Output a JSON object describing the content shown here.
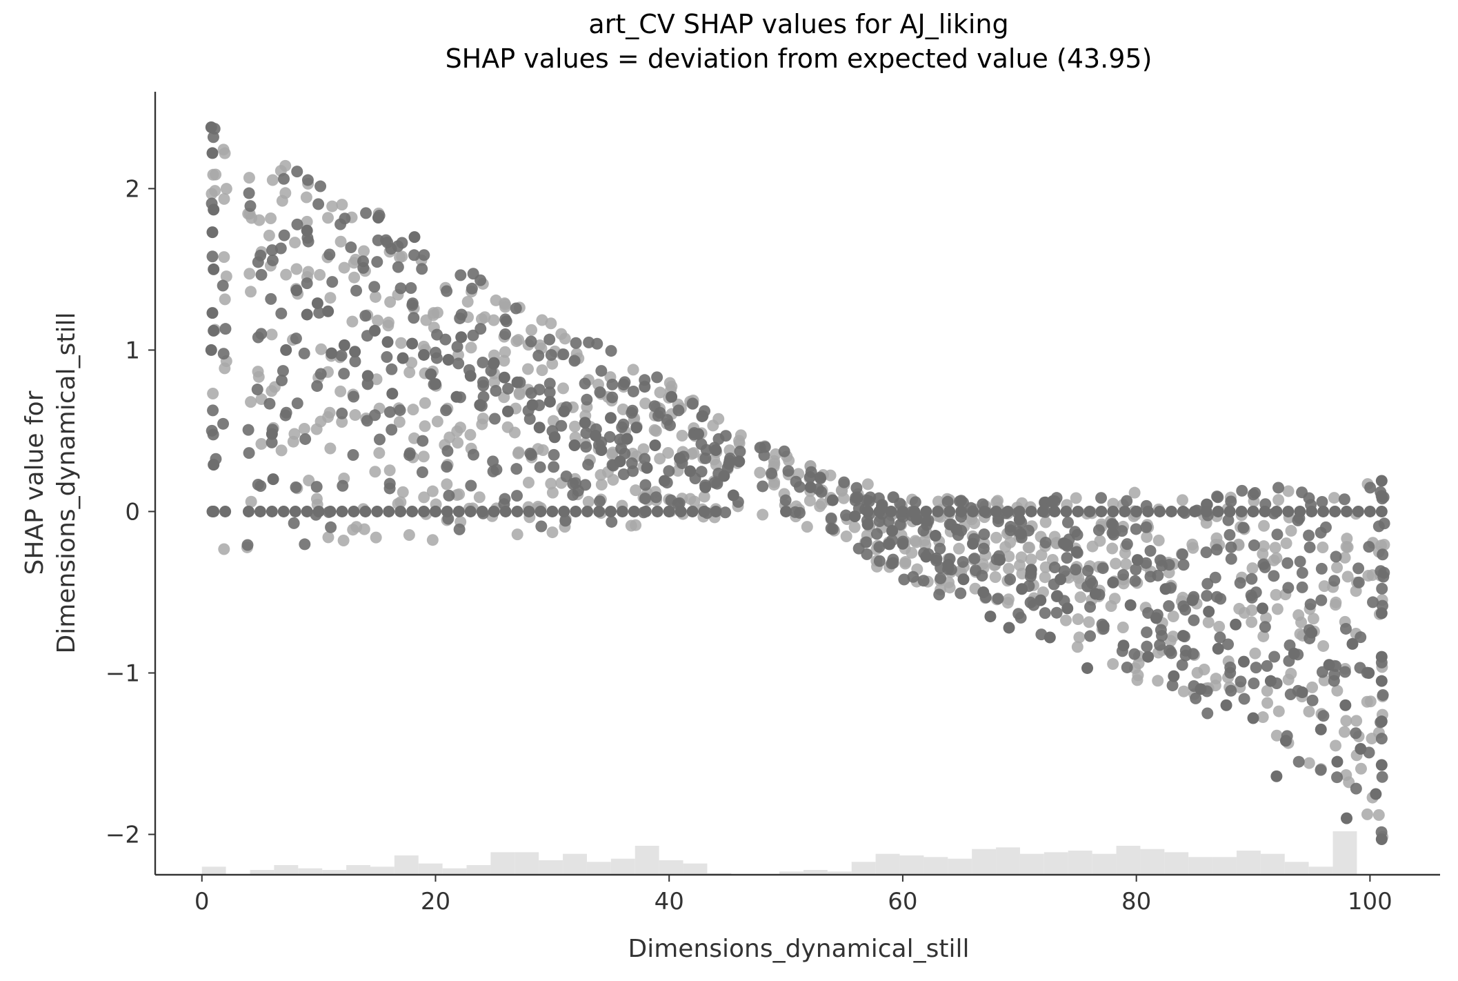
{
  "chart_data": {
    "type": "scatter",
    "title": "art_CV SHAP values for AJ_liking",
    "subtitle": "SHAP values = deviation from expected value (43.95)",
    "xlabel": "Dimensions_dynamical_still",
    "ylabel_lines": [
      "SHAP value for",
      "Dimensions_dynamical_still"
    ],
    "xlim": [
      -4,
      106
    ],
    "ylim": [
      -2.25,
      2.6
    ],
    "x_ticks": [
      0,
      20,
      40,
      60,
      80,
      100
    ],
    "y_ticks": [
      2,
      1,
      0,
      -1,
      -2
    ],
    "x_tick_labels": [
      "0",
      "20",
      "40",
      "60",
      "80",
      "100"
    ],
    "y_tick_labels": [
      "2",
      "1",
      "0",
      "−1",
      "−2"
    ],
    "grid": false,
    "colors": {
      "dark": "#6e6e6e",
      "light": "#a8a8a8",
      "histogram": "#e3e3e3",
      "axis": "#333333"
    },
    "envelope": {
      "x": [
        1,
        10,
        20,
        30,
        40,
        46,
        50,
        56,
        60,
        70,
        80,
        90,
        101
      ],
      "y_upper": [
        2.38,
        2.05,
        1.65,
        1.2,
        0.8,
        0.52,
        0.38,
        0.2,
        0.08,
        0.08,
        0.12,
        0.15,
        0.18
      ],
      "y_lower": [
        -0.27,
        -0.22,
        -0.18,
        -0.14,
        -0.08,
        -0.05,
        -0.02,
        -0.25,
        -0.45,
        -0.7,
        -1.05,
        -1.4,
        -2.03
      ]
    },
    "histogram": {
      "bin_start": 0,
      "bin_width": 2.06,
      "counts": [
        5,
        0,
        3,
        6,
        4,
        3,
        6,
        5,
        12,
        7,
        4,
        6,
        14,
        14,
        9,
        13,
        8,
        10,
        18,
        9,
        7,
        1,
        0,
        0,
        2,
        3,
        2,
        8,
        13,
        12,
        11,
        10,
        16,
        17,
        13,
        14,
        15,
        13,
        18,
        16,
        14,
        11,
        11,
        15,
        13,
        8,
        5,
        27
      ],
      "bin_count_max": 30
    },
    "series": [
      {
        "name": "",
        "points": [
          [
            0.8,
            2.38
          ],
          [
            0.9,
            2.22
          ],
          [
            1.0,
            1.87
          ],
          [
            0.9,
            1.73
          ],
          [
            1.0,
            1.5
          ],
          [
            0.9,
            1.23
          ],
          [
            1.0,
            1.12
          ],
          [
            0.8,
            1.0
          ],
          [
            1.0,
            0.29
          ],
          [
            0.9,
            0.0
          ],
          [
            6.0,
            0.48
          ],
          [
            6.1,
            0.2
          ],
          [
            7.2,
            1.0
          ],
          [
            8.1,
            1.37
          ],
          [
            9.0,
            1.74
          ],
          [
            9.0,
            1.22
          ],
          [
            9.9,
            1.29
          ],
          [
            10.8,
            1.24
          ],
          [
            11.1,
            0.98
          ],
          [
            12.2,
            1.03
          ],
          [
            13.1,
            0.99
          ],
          [
            14.2,
            0.84
          ],
          [
            14.8,
            1.12
          ],
          [
            15.1,
            1.82
          ],
          [
            15.9,
            1.05
          ],
          [
            16.3,
            0.73
          ],
          [
            17.2,
            0.95
          ],
          [
            18.2,
            1.7
          ],
          [
            18.0,
            1.04
          ],
          [
            19.0,
            0.97
          ],
          [
            19.6,
            0.85
          ],
          [
            20.0,
            0.79
          ],
          [
            21.1,
            0.94
          ],
          [
            21.8,
            0.71
          ],
          [
            22.2,
            1.08
          ],
          [
            23.0,
            0.84
          ],
          [
            23.8,
            0.66
          ],
          [
            25.0,
            0.92
          ],
          [
            25.9,
            0.83
          ],
          [
            26.2,
            0.62
          ],
          [
            27.0,
            0.8
          ],
          [
            28.3,
            0.66
          ],
          [
            28.9,
            0.52
          ],
          [
            29.8,
            0.68
          ],
          [
            30.2,
            0.46
          ],
          [
            31.0,
            0.62
          ],
          [
            31.9,
            0.41
          ],
          [
            32.8,
            0.55
          ],
          [
            33.7,
            0.47
          ],
          [
            34.2,
            0.38
          ],
          [
            35.0,
            0.58
          ],
          [
            35.8,
            0.31
          ],
          [
            36.4,
            0.45
          ],
          [
            37.2,
            0.52
          ],
          [
            38.1,
            0.27
          ],
          [
            38.8,
            0.41
          ],
          [
            39.6,
            0.19
          ],
          [
            40.2,
            0.71
          ],
          [
            40.9,
            0.33
          ],
          [
            41.8,
            0.25
          ],
          [
            42.5,
            0.48
          ],
          [
            43.1,
            0.15
          ],
          [
            44.0,
            0.38
          ],
          [
            44.7,
            0.22
          ],
          [
            45.5,
            0.1
          ],
          [
            46.0,
            0.31
          ],
          [
            50.0,
            0.0
          ],
          [
            52.1,
            0.15
          ],
          [
            54.0,
            0.07
          ],
          [
            55.9,
            -0.03
          ],
          [
            57.0,
            -0.08
          ],
          [
            58.2,
            0.02
          ],
          [
            59.1,
            -0.12
          ],
          [
            60.0,
            -0.2
          ],
          [
            61.2,
            -0.05
          ],
          [
            62.0,
            -0.28
          ],
          [
            62.8,
            -0.15
          ],
          [
            63.9,
            -0.33
          ],
          [
            64.6,
            -0.11
          ],
          [
            65.2,
            -0.42
          ],
          [
            66.0,
            -0.2
          ],
          [
            66.9,
            -0.5
          ],
          [
            67.5,
            -0.65
          ],
          [
            68.3,
            -0.3
          ],
          [
            69.1,
            -0.72
          ],
          [
            70.0,
            -0.05
          ],
          [
            70.2,
            -0.48
          ],
          [
            71.0,
            -0.36
          ],
          [
            71.8,
            -0.55
          ],
          [
            72.6,
            -0.78
          ],
          [
            73.5,
            -0.42
          ],
          [
            74.1,
            -0.6
          ],
          [
            74.9,
            -0.25
          ],
          [
            75.8,
            -0.97
          ],
          [
            76.5,
            -0.51
          ],
          [
            77.2,
            -0.71
          ],
          [
            78.0,
            -0.44
          ],
          [
            78.9,
            -0.83
          ],
          [
            79.5,
            -0.58
          ],
          [
            80.1,
            -0.3
          ],
          [
            81.0,
            -0.9
          ],
          [
            81.7,
            -0.66
          ],
          [
            82.5,
            -0.48
          ],
          [
            83.2,
            -1.02
          ],
          [
            84.0,
            -0.77
          ],
          [
            84.8,
            -0.55
          ],
          [
            85.5,
            -1.1
          ],
          [
            86.2,
            -0.62
          ],
          [
            87.0,
            -0.85
          ],
          [
            87.7,
            -1.2
          ],
          [
            88.5,
            -0.7
          ],
          [
            89.2,
            -0.93
          ],
          [
            90.0,
            -1.28
          ],
          [
            90.8,
            -0.6
          ],
          [
            91.5,
            -1.05
          ],
          [
            92.0,
            -1.64
          ],
          [
            92.8,
            -1.42
          ],
          [
            93.5,
            -0.88
          ],
          [
            94.2,
            -1.12
          ],
          [
            95.0,
            -0.75
          ],
          [
            95.8,
            -1.35
          ],
          [
            96.5,
            -0.95
          ],
          [
            97.2,
            -1.55
          ],
          [
            97.9,
            -1.2
          ],
          [
            98.5,
            -0.82
          ],
          [
            99.2,
            -1.47
          ],
          [
            99.9,
            -1.0
          ],
          [
            101.0,
            0.19
          ],
          [
            101.0,
            -0.63
          ],
          [
            101.0,
            -0.9
          ],
          [
            101.0,
            -1.05
          ],
          [
            101.0,
            -1.3
          ],
          [
            101.0,
            -1.57
          ],
          [
            101.0,
            -2.03
          ],
          [
            98.0,
            -1.9
          ],
          [
            100.5,
            -1.75
          ],
          [
            20.0,
            0.0
          ],
          [
            40.0,
            0.0
          ],
          [
            80.0,
            0.0
          ],
          [
            90.0,
            0.0
          ]
        ]
      }
    ]
  }
}
